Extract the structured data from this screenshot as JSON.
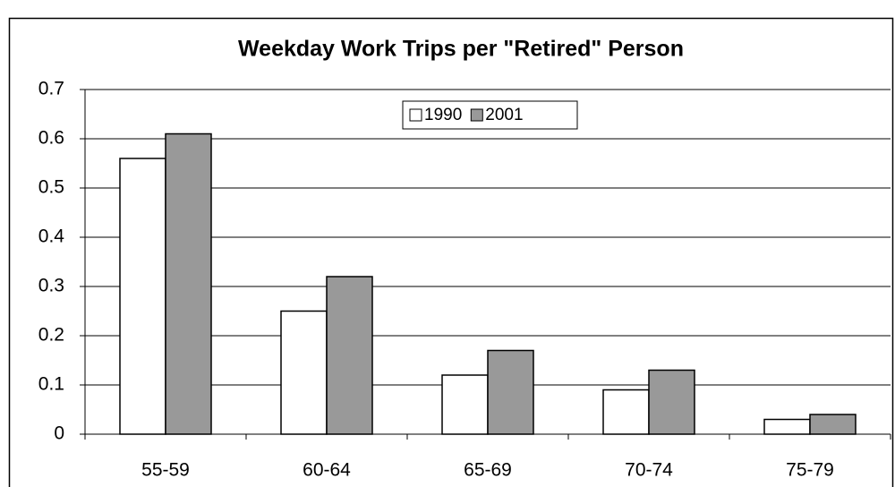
{
  "chart_data": {
    "type": "bar",
    "title": "Weekday Work Trips per \"Retired\" Person",
    "categories": [
      "55-59",
      "60-64",
      "65-69",
      "70-74",
      "75-79"
    ],
    "series": [
      {
        "name": "1990",
        "color": "#ffffff",
        "values": [
          0.56,
          0.25,
          0.12,
          0.09,
          0.03
        ]
      },
      {
        "name": "2001",
        "color": "#999999",
        "values": [
          0.61,
          0.32,
          0.17,
          0.13,
          0.04
        ]
      }
    ],
    "ylim": [
      0,
      0.7
    ],
    "yticks": [
      0,
      0.1,
      0.2,
      0.3,
      0.4,
      0.5,
      0.6,
      0.7
    ],
    "grid": true,
    "legend": "top"
  }
}
